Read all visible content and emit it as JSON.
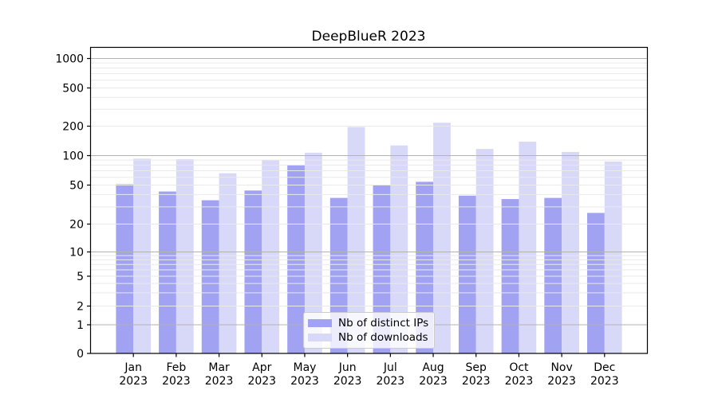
{
  "chart_data": {
    "type": "bar",
    "title": "DeepBlueR 2023",
    "categories": [
      {
        "month": "Jan",
        "year": "2023"
      },
      {
        "month": "Feb",
        "year": "2023"
      },
      {
        "month": "Mar",
        "year": "2023"
      },
      {
        "month": "Apr",
        "year": "2023"
      },
      {
        "month": "May",
        "year": "2023"
      },
      {
        "month": "Jun",
        "year": "2023"
      },
      {
        "month": "Jul",
        "year": "2023"
      },
      {
        "month": "Aug",
        "year": "2023"
      },
      {
        "month": "Sep",
        "year": "2023"
      },
      {
        "month": "Oct",
        "year": "2023"
      },
      {
        "month": "Nov",
        "year": "2023"
      },
      {
        "month": "Dec",
        "year": "2023"
      }
    ],
    "series": [
      {
        "name": "Nb of distinct IPs",
        "color": "#a2a2f2",
        "values": [
          51,
          43,
          35,
          44,
          80,
          37,
          50,
          54,
          39,
          36,
          37,
          26
        ]
      },
      {
        "name": "Nb of downloads",
        "color": "#d8d8f8",
        "values": [
          93,
          92,
          66,
          90,
          107,
          196,
          127,
          217,
          117,
          139,
          109,
          87
        ]
      }
    ],
    "y_axis": {
      "scale": "log-like",
      "range": [
        0,
        1000
      ],
      "tick_values": [
        0,
        1,
        2,
        5,
        10,
        20,
        50,
        100,
        200,
        500,
        1000
      ],
      "tick_labels": [
        "0",
        "1",
        "2",
        "5",
        "10",
        "20",
        "50",
        "100",
        "200",
        "500",
        "1000"
      ]
    },
    "xlabel": "",
    "ylabel": "",
    "grid": {
      "on": true,
      "major_values": [
        1,
        10,
        100,
        1000
      ],
      "minor_values": [
        2,
        3,
        4,
        5,
        6,
        7,
        8,
        9,
        20,
        30,
        40,
        50,
        60,
        70,
        80,
        90,
        200,
        300,
        400,
        500,
        600,
        700,
        800,
        900
      ],
      "major_color": "#b3b3b3",
      "minor_color": "#e9e9e9"
    },
    "legend": {
      "position": "lower-center",
      "entries": [
        "Nb of distinct IPs",
        "Nb of downloads"
      ]
    },
    "axis_color": "#000000",
    "text_color": "#000000",
    "background_color": "#ffffff"
  }
}
